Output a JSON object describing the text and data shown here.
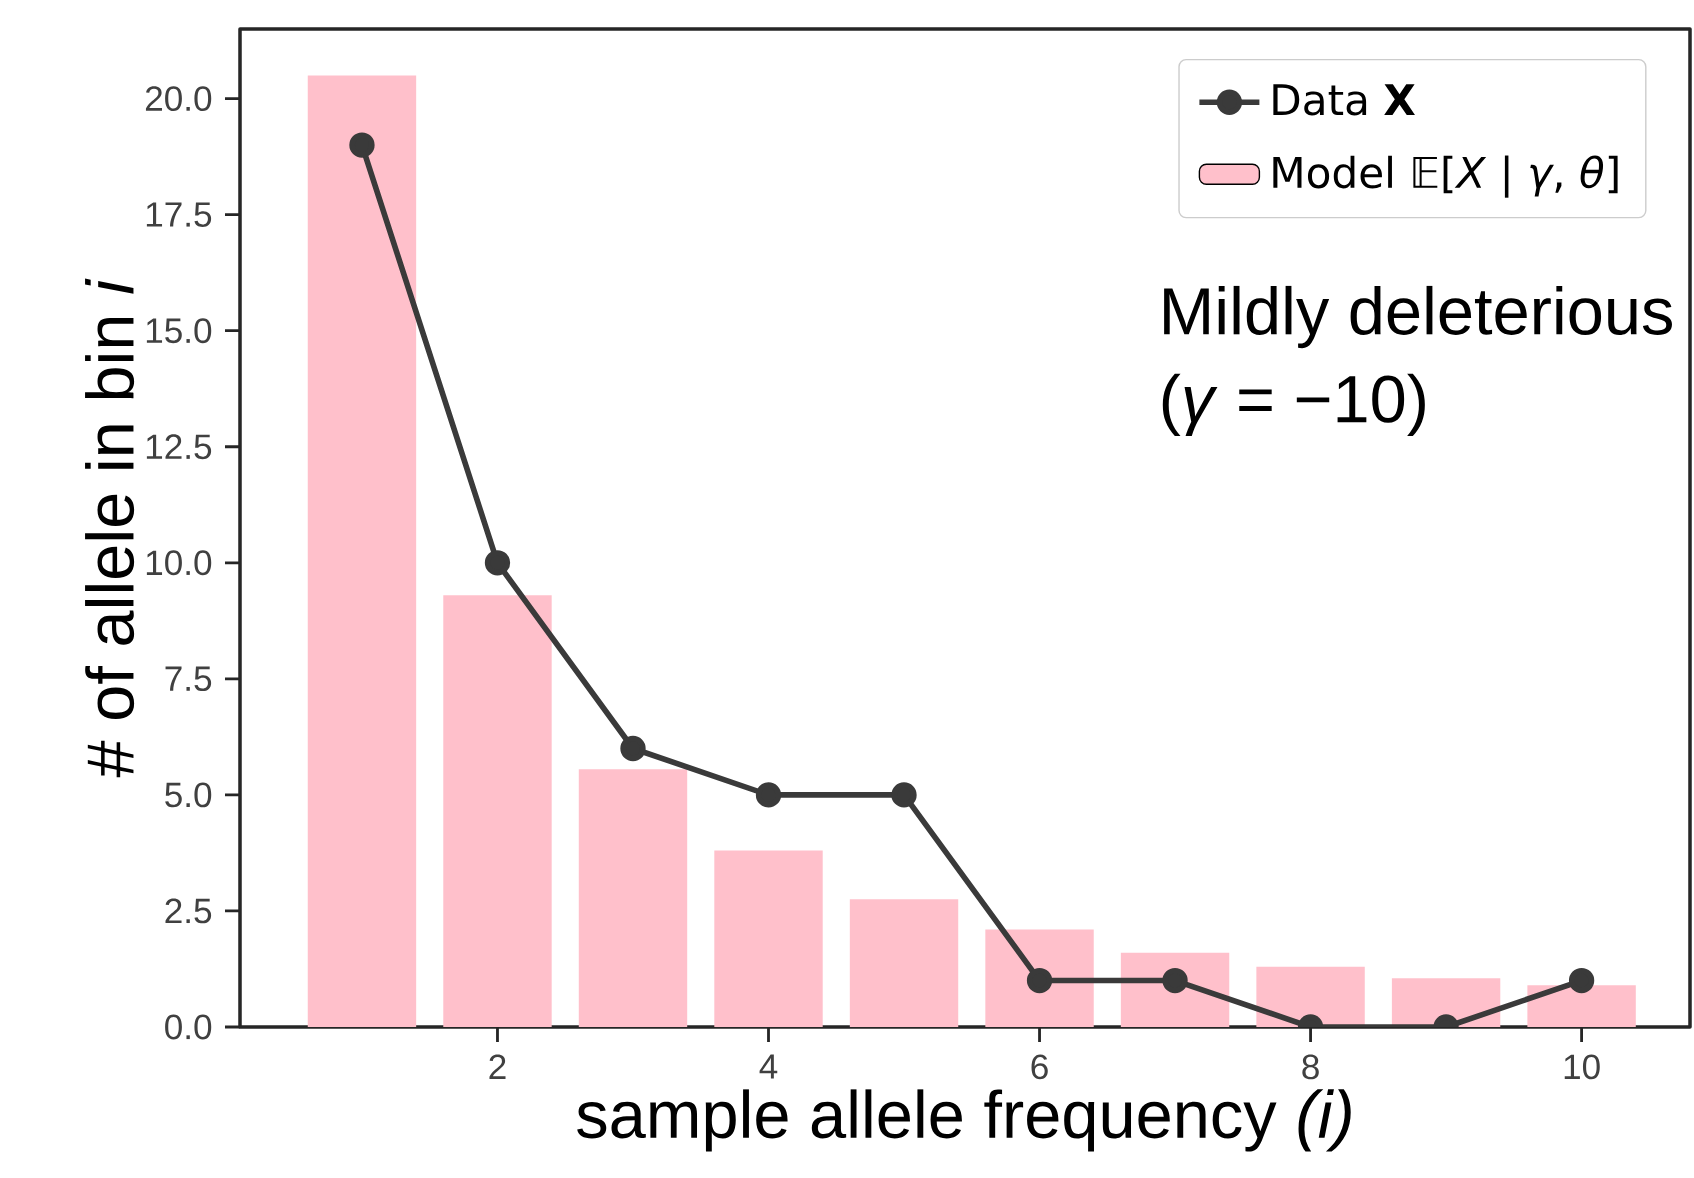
{
  "chart_data": {
    "type": "bar",
    "xlabel": "sample allele frequency *(i)*",
    "ylabel": "# of allele in bin *i*",
    "x": [
      1,
      2,
      3,
      4,
      5,
      6,
      7,
      8,
      9,
      10
    ],
    "series": [
      {
        "name": "Model 𝔼[*X* | *γ*, *θ*]",
        "color": "#ffc0cb",
        "values": [
          20.5,
          9.3,
          5.55,
          3.8,
          2.75,
          2.1,
          1.6,
          1.3,
          1.05,
          0.9
        ]
      },
      {
        "name": "Data **X**",
        "type": "line",
        "color": "#3a3a3a",
        "marker": "circle",
        "values": [
          19,
          10,
          6,
          5,
          5,
          1,
          1,
          0,
          0,
          1
        ]
      }
    ],
    "xlim": [
      0.1,
      10.8
    ],
    "ylim": [
      0,
      21.5
    ],
    "xticks": [
      2,
      4,
      6,
      8,
      10
    ],
    "yticks": [
      {
        "value": 0,
        "label": "0.0"
      },
      {
        "value": 2.5,
        "label": "2.5"
      },
      {
        "value": 5,
        "label": "5.0"
      },
      {
        "value": 7.5,
        "label": "7.5"
      },
      {
        "value": 10,
        "label": "10.0"
      },
      {
        "value": 12.5,
        "label": "12.5"
      },
      {
        "value": 15,
        "label": "15.0"
      },
      {
        "value": 17.5,
        "label": "17.5"
      },
      {
        "value": 20,
        "label": "20.0"
      }
    ],
    "legend": "top right",
    "annotations": [
      "Mildly deleterious",
      "(*γ* = −10)"
    ]
  }
}
